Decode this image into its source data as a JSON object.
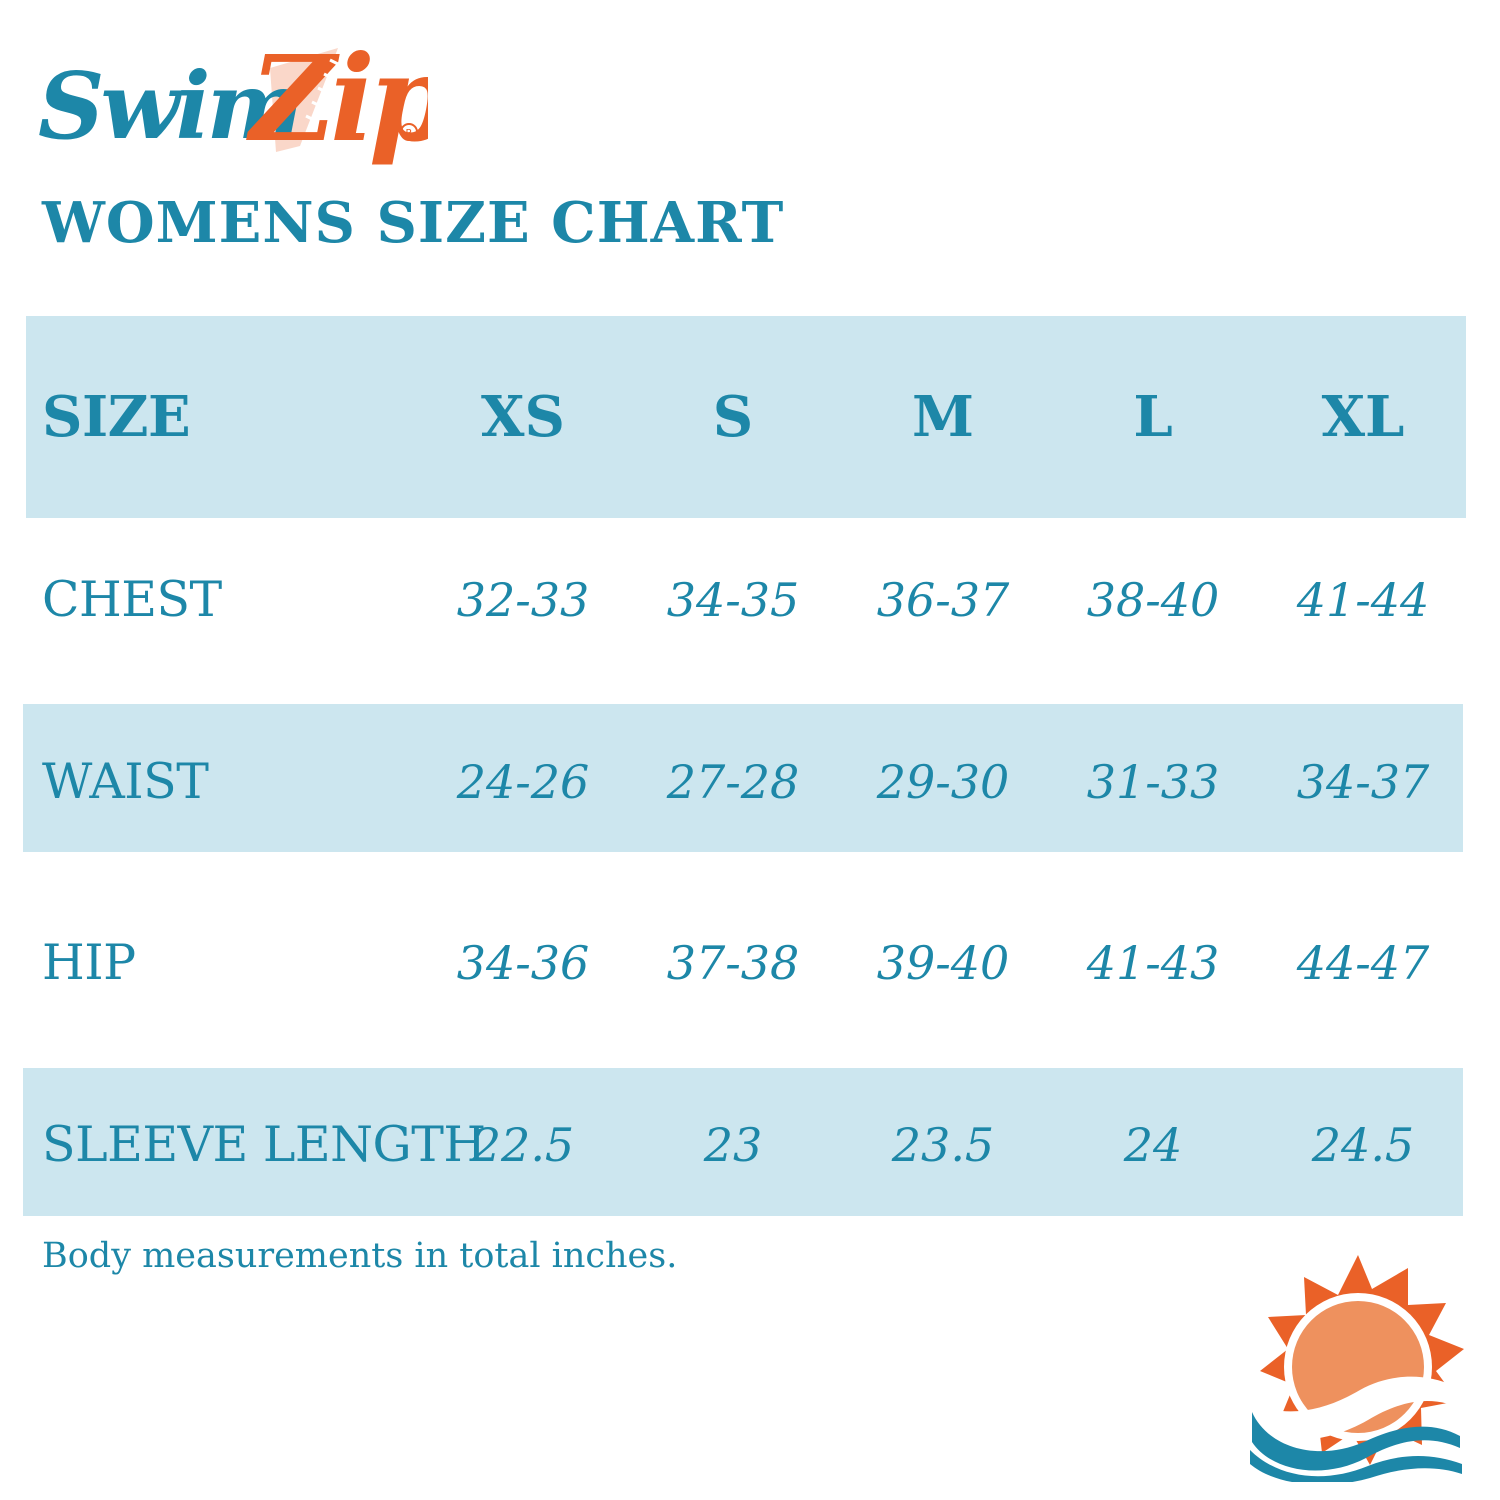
{
  "brand": {
    "logo_text": "SwimZip",
    "registered_mark": "®",
    "colors": {
      "teal": "#1d87a8",
      "orange": "#ea6128",
      "sun_inner": "#ee915e",
      "band": "#cce6ef"
    }
  },
  "title": "WOMENS SIZE CHART",
  "table": {
    "header": {
      "label": "SIZE",
      "sizes": [
        "XS",
        "S",
        "M",
        "L",
        "XL"
      ]
    },
    "rows": [
      {
        "label": "CHEST",
        "values": [
          "32-33",
          "34-35",
          "36-37",
          "38-40",
          "41-44"
        ]
      },
      {
        "label": "WAIST",
        "values": [
          "24-26",
          "27-28",
          "29-30",
          "31-33",
          "34-37"
        ]
      },
      {
        "label": "HIP",
        "values": [
          "34-36",
          "37-38",
          "39-40",
          "41-43",
          "44-47"
        ]
      },
      {
        "label": "SLEEVE LENGTH",
        "values": [
          "22.5",
          "23",
          "23.5",
          "24",
          "24.5"
        ]
      }
    ]
  },
  "note": "Body measurements in total inches.",
  "icons": {
    "logo": "swimzip-logo",
    "sun": "sun-over-waves-icon"
  }
}
